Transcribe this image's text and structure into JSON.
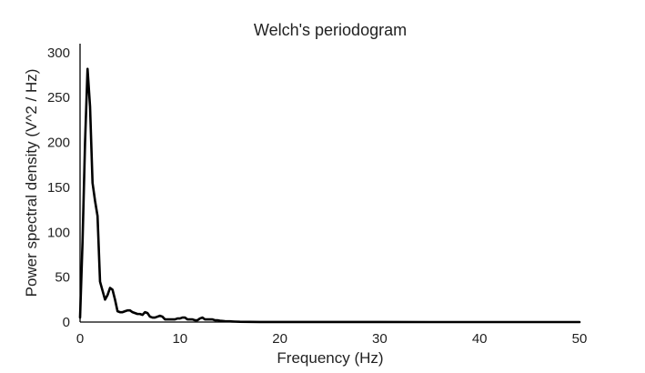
{
  "chart_data": {
    "type": "line",
    "title": "Welch's periodogram",
    "xlabel": "Frequency (Hz)",
    "ylabel": "Power spectral density (V^2 / Hz)",
    "xlim": [
      0,
      50
    ],
    "ylim": [
      0,
      310
    ],
    "xticks": [
      0,
      10,
      20,
      30,
      40,
      50
    ],
    "yticks": [
      0,
      50,
      100,
      150,
      200,
      250,
      300
    ],
    "grid": false,
    "line_color": "#000000",
    "series": [
      {
        "x": [
          0,
          0.25,
          0.5,
          0.75,
          1.0,
          1.25,
          1.5,
          1.75,
          2.0,
          2.25,
          2.5,
          2.75,
          3.0,
          3.25,
          3.5,
          3.75,
          4.0,
          4.25,
          4.5,
          4.75,
          5.0,
          5.25,
          5.5,
          5.75,
          6.0,
          6.25,
          6.5,
          6.75,
          7.0,
          7.25,
          7.5,
          7.75,
          8.0,
          8.25,
          8.5,
          8.75,
          9.0,
          9.25,
          9.5,
          9.75,
          10.0,
          10.25,
          10.5,
          10.75,
          11.0,
          11.25,
          11.5,
          11.75,
          12.0,
          12.25,
          12.5,
          12.75,
          13.0,
          13.25,
          13.5,
          13.75,
          14.0,
          14.5,
          15.0,
          15.5,
          16.0,
          17.0,
          18.0,
          20.0,
          25.0,
          30.0,
          35.0,
          40.0,
          45.0,
          50.0
        ],
        "y": [
          5,
          90,
          200,
          282,
          240,
          155,
          135,
          118,
          45,
          35,
          25,
          30,
          38,
          36,
          25,
          12,
          11,
          11,
          12,
          13,
          13,
          11,
          10,
          9,
          9,
          8,
          11,
          10,
          6,
          5,
          5,
          6,
          7,
          6,
          3,
          3,
          3,
          3,
          3,
          4,
          4,
          5,
          5,
          3,
          3,
          3,
          2,
          2,
          4,
          5,
          3,
          3,
          3,
          3,
          2,
          2,
          1.5,
          1,
          0.8,
          0.5,
          0.3,
          0.2,
          0.1,
          0.05,
          0.03,
          0.02,
          0.01,
          0.01,
          0.01,
          0.01
        ]
      }
    ]
  }
}
